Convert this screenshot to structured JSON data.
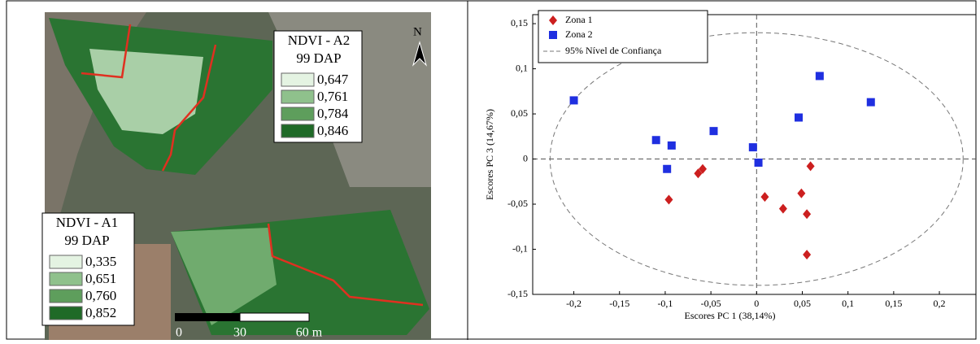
{
  "map": {
    "north": "N",
    "legend_a2": {
      "title": "NDVI - A2",
      "subtitle": "99 DAP",
      "items": [
        {
          "label": "0,647",
          "color": "#e4f3e2"
        },
        {
          "label": "0,761",
          "color": "#8fc18c"
        },
        {
          "label": "0,784",
          "color": "#5e9e5c"
        },
        {
          "label": "0,846",
          "color": "#1f6a27"
        }
      ]
    },
    "legend_a1": {
      "title": "NDVI - A1",
      "subtitle": "99 DAP",
      "items": [
        {
          "label": "0,335",
          "color": "#e4f3e2"
        },
        {
          "label": "0,651",
          "color": "#8fc18c"
        },
        {
          "label": "0,760",
          "color": "#5e9e5c"
        },
        {
          "label": "0,852",
          "color": "#1f6a27"
        }
      ]
    },
    "scale": [
      "0",
      "30",
      "60 m"
    ]
  },
  "chart_data": {
    "type": "scatter",
    "x_label": "Escores  PC 1 (38,14%)",
    "y_label": "Escores  PC 3 (14,67%)",
    "xlim": [
      -0.245,
      0.24
    ],
    "ylim": [
      -0.15,
      0.16
    ],
    "xticks": [
      {
        "value": -0.2,
        "label": "-0,2"
      },
      {
        "value": -0.15,
        "label": "-0,15"
      },
      {
        "value": -0.1,
        "label": "-0,1"
      },
      {
        "value": -0.05,
        "label": "-0,05"
      },
      0,
      {
        "value": 0.05,
        "label": "0,05"
      },
      {
        "value": 0.1,
        "label": "0,1"
      },
      {
        "value": 0.15,
        "label": "0,15"
      },
      {
        "value": 0.2,
        "label": "0,2"
      }
    ],
    "yticks": [
      {
        "value": 0.15,
        "label": "0,15"
      },
      {
        "value": 0.1,
        "label": "0,1"
      },
      {
        "value": 0.05,
        "label": "0,05"
      },
      0,
      {
        "value": -0.05,
        "label": "-0,05"
      },
      {
        "value": -0.1,
        "label": "-0,1"
      },
      {
        "value": -0.15,
        "label": "-0,15"
      }
    ],
    "series": [
      {
        "name": "Zona 1",
        "color": "#cc1f1f",
        "marker": "diamond",
        "x": [
          -0.096,
          -0.064,
          -0.059,
          0.009,
          0.029,
          0.049,
          0.055,
          0.059,
          0.055
        ],
        "values": [
          -0.045,
          -0.016,
          -0.011,
          -0.042,
          -0.055,
          -0.038,
          -0.061,
          -0.008,
          -0.106
        ]
      },
      {
        "name": "Zona 2",
        "color": "#1f2fe0",
        "marker": "square",
        "x": [
          -0.2,
          -0.11,
          -0.093,
          -0.098,
          -0.047,
          -0.004,
          0.002,
          0.046,
          0.069,
          0.125
        ],
        "values": [
          0.065,
          0.021,
          0.015,
          -0.011,
          0.031,
          0.013,
          -0.004,
          0.046,
          0.092,
          0.063
        ]
      }
    ],
    "ellipse": {
      "name": "95% Nível de Confiança",
      "rx": 0.226,
      "ry": 0.14
    }
  }
}
